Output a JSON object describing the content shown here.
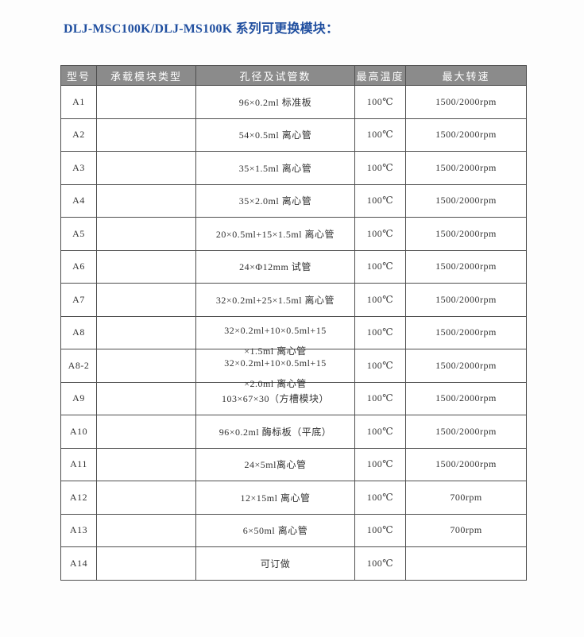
{
  "page": {
    "title": "DLJ-MSC100K/DLJ-MS100K 系列可更换模块："
  },
  "colors": {
    "title_blue": "#1f4e9f",
    "header_bg": "#8b8b8b",
    "header_text": "#ffffff",
    "table_border": "#4f4f4f",
    "cell_text": "#333333",
    "page_bg": "#fdfdfd"
  },
  "table": {
    "headers": [
      "型号",
      "承载模块类型",
      "孔径及试管数",
      "最高温度",
      "最大转速"
    ],
    "rows": [
      {
        "model": "A1",
        "module_type": "",
        "tubes": "96×0.2ml 标准板",
        "max_temp": "100℃",
        "max_speed": "1500/2000rpm"
      },
      {
        "model": "A2",
        "module_type": "",
        "tubes": "54×0.5ml 离心管",
        "max_temp": "100℃",
        "max_speed": "1500/2000rpm"
      },
      {
        "model": "A3",
        "module_type": "",
        "tubes": "35×1.5ml 离心管",
        "max_temp": "100℃",
        "max_speed": "1500/2000rpm"
      },
      {
        "model": "A4",
        "module_type": "",
        "tubes": "35×2.0ml 离心管",
        "max_temp": "100℃",
        "max_speed": "1500/2000rpm"
      },
      {
        "model": "A5",
        "module_type": "",
        "tubes": "20×0.5ml+15×1.5ml 离心管",
        "max_temp": "100℃",
        "max_speed": "1500/2000rpm"
      },
      {
        "model": "A6",
        "module_type": "",
        "tubes": "24×Φ12mm 试管",
        "max_temp": "100℃",
        "max_speed": "1500/2000rpm"
      },
      {
        "model": "A7",
        "module_type": "",
        "tubes": "32×0.2ml+25×1.5ml 离心管",
        "max_temp": "100℃",
        "max_speed": "1500/2000rpm"
      },
      {
        "model": "A8",
        "module_type": "",
        "tubes_line1": "32×0.2ml+10×0.5ml+15",
        "tubes_line2": "×1.5ml 离心管",
        "max_temp": "100℃",
        "max_speed": "1500/2000rpm"
      },
      {
        "model": "A8-2",
        "module_type": "",
        "tubes_line1": "32×0.2ml+10×0.5ml+15",
        "tubes_line2": "×2.0ml 离心管",
        "max_temp": "100℃",
        "max_speed": "1500/2000rpm"
      },
      {
        "model": "A9",
        "module_type": "",
        "tubes": "103×67×30（方槽模块）",
        "max_temp": "100℃",
        "max_speed": "1500/2000rpm"
      },
      {
        "model": "A10",
        "module_type": "",
        "tubes": "96×0.2ml 酶标板（平底）",
        "max_temp": "100℃",
        "max_speed": "1500/2000rpm"
      },
      {
        "model": "A11",
        "module_type": "",
        "tubes": "24×5ml离心管",
        "max_temp": "100℃",
        "max_speed": "1500/2000rpm"
      },
      {
        "model": "A12",
        "module_type": "",
        "tubes": "12×15ml 离心管",
        "max_temp": "100℃",
        "max_speed": "700rpm"
      },
      {
        "model": "A13",
        "module_type": "",
        "tubes": "6×50ml 离心管",
        "max_temp": "100℃",
        "max_speed": "700rpm"
      },
      {
        "model": "A14",
        "module_type": "",
        "tubes": "可订做",
        "max_temp": "100℃",
        "max_speed": ""
      }
    ]
  }
}
